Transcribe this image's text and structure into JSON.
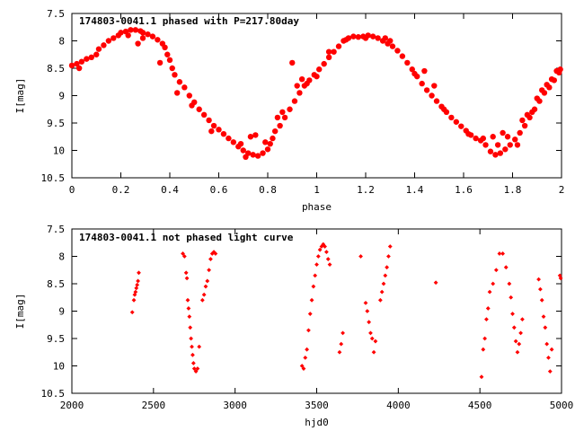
{
  "chart_data": [
    {
      "type": "scatter",
      "title": "174803-0041.1 phased with P=217.80day",
      "xlabel": "phase",
      "ylabel": "I[mag]",
      "xlim": [
        0,
        2
      ],
      "ylim": [
        10.5,
        7.5
      ],
      "y_inverted": true,
      "grid": false,
      "marker": "filled-circle",
      "x_ticks": [
        "0",
        "0.2",
        "0.4",
        "0.6",
        "0.8",
        "1",
        "1.2",
        "1.4",
        "1.6",
        "1.8",
        "2"
      ],
      "y_ticks": [
        "7.5",
        "8",
        "8.5",
        "9",
        "9.5",
        "10",
        "10.5"
      ],
      "color": "#ff0000",
      "series": [
        {
          "points": [
            [
              0.0,
              8.45
            ],
            [
              0.02,
              8.42
            ],
            [
              0.04,
              8.38
            ],
            [
              0.06,
              8.33
            ],
            [
              0.08,
              8.3
            ],
            [
              0.1,
              8.25
            ],
            [
              0.11,
              8.15
            ],
            [
              0.13,
              8.08
            ],
            [
              0.15,
              8.0
            ],
            [
              0.17,
              7.95
            ],
            [
              0.19,
              7.9
            ],
            [
              0.2,
              7.85
            ],
            [
              0.22,
              7.83
            ],
            [
              0.24,
              7.8
            ],
            [
              0.26,
              7.8
            ],
            [
              0.28,
              7.82
            ],
            [
              0.29,
              7.85
            ],
            [
              0.31,
              7.88
            ],
            [
              0.33,
              7.92
            ],
            [
              0.35,
              7.98
            ],
            [
              0.37,
              8.05
            ],
            [
              0.38,
              8.12
            ],
            [
              0.39,
              8.25
            ],
            [
              0.4,
              8.35
            ],
            [
              0.41,
              8.5
            ],
            [
              0.42,
              8.62
            ],
            [
              0.44,
              8.75
            ],
            [
              0.46,
              8.85
            ],
            [
              0.48,
              9.0
            ],
            [
              0.5,
              9.12
            ],
            [
              0.52,
              9.25
            ],
            [
              0.54,
              9.35
            ],
            [
              0.56,
              9.45
            ],
            [
              0.58,
              9.55
            ],
            [
              0.6,
              9.62
            ],
            [
              0.62,
              9.7
            ],
            [
              0.64,
              9.78
            ],
            [
              0.66,
              9.85
            ],
            [
              0.68,
              9.93
            ],
            [
              0.7,
              10.0
            ],
            [
              0.72,
              10.05
            ],
            [
              0.74,
              10.08
            ],
            [
              0.76,
              10.1
            ],
            [
              0.78,
              10.05
            ],
            [
              0.8,
              9.98
            ],
            [
              0.81,
              9.88
            ],
            [
              0.82,
              9.78
            ],
            [
              0.83,
              9.65
            ],
            [
              0.85,
              9.55
            ],
            [
              0.87,
              9.4
            ],
            [
              0.89,
              9.25
            ],
            [
              0.91,
              9.1
            ],
            [
              0.93,
              8.95
            ],
            [
              0.95,
              8.82
            ],
            [
              0.97,
              8.72
            ],
            [
              0.99,
              8.62
            ],
            [
              1.01,
              8.52
            ],
            [
              1.03,
              8.42
            ],
            [
              1.05,
              8.3
            ],
            [
              1.07,
              8.2
            ],
            [
              1.09,
              8.1
            ],
            [
              1.11,
              8.0
            ],
            [
              1.13,
              7.95
            ],
            [
              1.15,
              7.92
            ],
            [
              1.17,
              7.93
            ],
            [
              1.19,
              7.92
            ],
            [
              1.21,
              7.9
            ],
            [
              1.23,
              7.92
            ],
            [
              1.25,
              7.95
            ],
            [
              1.27,
              8.0
            ],
            [
              1.29,
              8.05
            ],
            [
              1.31,
              8.1
            ],
            [
              1.33,
              8.18
            ],
            [
              1.35,
              8.28
            ],
            [
              1.37,
              8.4
            ],
            [
              1.39,
              8.52
            ],
            [
              1.41,
              8.65
            ],
            [
              1.43,
              8.78
            ],
            [
              1.45,
              8.9
            ],
            [
              1.47,
              9.0
            ],
            [
              1.49,
              9.1
            ],
            [
              1.51,
              9.2
            ],
            [
              1.53,
              9.3
            ],
            [
              1.55,
              9.4
            ],
            [
              1.57,
              9.48
            ],
            [
              1.59,
              9.56
            ],
            [
              1.61,
              9.64
            ],
            [
              1.63,
              9.72
            ],
            [
              1.65,
              9.78
            ],
            [
              1.67,
              9.82
            ],
            [
              1.69,
              9.9
            ],
            [
              1.71,
              10.02
            ],
            [
              1.73,
              10.08
            ],
            [
              1.75,
              10.05
            ],
            [
              1.77,
              9.98
            ],
            [
              1.79,
              9.9
            ],
            [
              1.81,
              9.8
            ],
            [
              1.83,
              9.68
            ],
            [
              1.85,
              9.55
            ],
            [
              1.87,
              9.4
            ],
            [
              1.89,
              9.25
            ],
            [
              1.91,
              9.1
            ],
            [
              1.93,
              8.95
            ],
            [
              1.95,
              8.85
            ],
            [
              1.97,
              8.72
            ],
            [
              1.99,
              8.58
            ],
            [
              1.995,
              8.52
            ],
            [
              0.03,
              8.5
            ],
            [
              0.23,
              7.9
            ],
            [
              0.27,
              8.05
            ],
            [
              0.29,
              7.95
            ],
            [
              0.36,
              8.4
            ],
            [
              0.43,
              8.95
            ],
            [
              0.49,
              9.18
            ],
            [
              0.57,
              9.65
            ],
            [
              0.69,
              9.88
            ],
            [
              0.71,
              10.12
            ],
            [
              0.73,
              9.75
            ],
            [
              0.75,
              9.72
            ],
            [
              0.79,
              9.85
            ],
            [
              0.84,
              9.4
            ],
            [
              0.86,
              9.3
            ],
            [
              0.9,
              8.4
            ],
            [
              0.92,
              8.82
            ],
            [
              0.94,
              8.7
            ],
            [
              0.96,
              8.78
            ],
            [
              1.0,
              8.65
            ],
            [
              1.05,
              8.2
            ],
            [
              1.12,
              7.98
            ],
            [
              1.2,
              7.95
            ],
            [
              1.28,
              7.95
            ],
            [
              1.3,
              8.0
            ],
            [
              1.4,
              8.6
            ],
            [
              1.44,
              8.55
            ],
            [
              1.48,
              8.82
            ],
            [
              1.52,
              9.25
            ],
            [
              1.62,
              9.7
            ],
            [
              1.68,
              9.78
            ],
            [
              1.72,
              9.75
            ],
            [
              1.74,
              9.9
            ],
            [
              1.76,
              9.68
            ],
            [
              1.78,
              9.75
            ],
            [
              1.82,
              9.9
            ],
            [
              1.84,
              9.45
            ],
            [
              1.86,
              9.35
            ],
            [
              1.88,
              9.3
            ],
            [
              1.9,
              9.05
            ],
            [
              1.92,
              8.9
            ],
            [
              1.94,
              8.8
            ],
            [
              1.96,
              8.7
            ],
            [
              1.98,
              8.55
            ]
          ]
        }
      ]
    },
    {
      "type": "scatter",
      "title": "174803-0041.1 not phased light curve",
      "xlabel": "hjd0",
      "ylabel": "I[mag]",
      "xlim": [
        2000,
        5000
      ],
      "ylim": [
        10.5,
        7.5
      ],
      "y_inverted": true,
      "grid": false,
      "marker": "small-diamond",
      "x_ticks": [
        "2000",
        "2500",
        "3000",
        "3500",
        "4000",
        "4500",
        "5000"
      ],
      "y_ticks": [
        "7.5",
        "8",
        "8.5",
        "9",
        "9.5",
        "10",
        "10.5"
      ],
      "color": "#ff0000",
      "series": [
        {
          "points": [
            [
              2370,
              9.02
            ],
            [
              2380,
              8.8
            ],
            [
              2385,
              8.7
            ],
            [
              2390,
              8.65
            ],
            [
              2395,
              8.58
            ],
            [
              2400,
              8.52
            ],
            [
              2405,
              8.45
            ],
            [
              2410,
              8.3
            ],
            [
              2680,
              7.95
            ],
            [
              2690,
              8.0
            ],
            [
              2700,
              8.3
            ],
            [
              2705,
              8.4
            ],
            [
              2710,
              8.8
            ],
            [
              2715,
              8.95
            ],
            [
              2720,
              9.1
            ],
            [
              2725,
              9.3
            ],
            [
              2730,
              9.5
            ],
            [
              2735,
              9.65
            ],
            [
              2740,
              9.8
            ],
            [
              2745,
              9.95
            ],
            [
              2750,
              10.05
            ],
            [
              2760,
              10.1
            ],
            [
              2770,
              10.05
            ],
            [
              2780,
              9.65
            ],
            [
              2800,
              8.8
            ],
            [
              2810,
              8.7
            ],
            [
              2820,
              8.55
            ],
            [
              2830,
              8.45
            ],
            [
              2840,
              8.25
            ],
            [
              2850,
              8.05
            ],
            [
              2860,
              7.95
            ],
            [
              2870,
              7.92
            ],
            [
              2880,
              7.95
            ],
            [
              3410,
              10.0
            ],
            [
              3420,
              10.05
            ],
            [
              3430,
              9.85
            ],
            [
              3440,
              9.7
            ],
            [
              3450,
              9.35
            ],
            [
              3460,
              9.05
            ],
            [
              3470,
              8.8
            ],
            [
              3480,
              8.55
            ],
            [
              3490,
              8.35
            ],
            [
              3500,
              8.15
            ],
            [
              3510,
              8.0
            ],
            [
              3520,
              7.88
            ],
            [
              3530,
              7.82
            ],
            [
              3540,
              7.78
            ],
            [
              3550,
              7.82
            ],
            [
              3560,
              7.92
            ],
            [
              3570,
              8.05
            ],
            [
              3580,
              8.15
            ],
            [
              3640,
              9.75
            ],
            [
              3650,
              9.6
            ],
            [
              3660,
              9.4
            ],
            [
              3770,
              8.0
            ],
            [
              3800,
              8.85
            ],
            [
              3810,
              9.0
            ],
            [
              3820,
              9.2
            ],
            [
              3830,
              9.4
            ],
            [
              3840,
              9.5
            ],
            [
              3850,
              9.75
            ],
            [
              3860,
              9.55
            ],
            [
              3890,
              8.8
            ],
            [
              3900,
              8.65
            ],
            [
              3910,
              8.5
            ],
            [
              3920,
              8.35
            ],
            [
              3930,
              8.2
            ],
            [
              3940,
              8.0
            ],
            [
              3950,
              7.82
            ],
            [
              4230,
              8.48
            ],
            [
              4510,
              10.2
            ],
            [
              4520,
              9.7
            ],
            [
              4530,
              9.5
            ],
            [
              4540,
              9.15
            ],
            [
              4550,
              8.95
            ],
            [
              4560,
              8.65
            ],
            [
              4580,
              8.5
            ],
            [
              4600,
              8.25
            ],
            [
              4620,
              7.95
            ],
            [
              4640,
              7.95
            ],
            [
              4660,
              8.2
            ],
            [
              4680,
              8.5
            ],
            [
              4690,
              8.75
            ],
            [
              4700,
              9.05
            ],
            [
              4710,
              9.3
            ],
            [
              4720,
              9.55
            ],
            [
              4730,
              9.75
            ],
            [
              4740,
              9.6
            ],
            [
              4750,
              9.4
            ],
            [
              4760,
              9.15
            ],
            [
              4860,
              8.42
            ],
            [
              4870,
              8.6
            ],
            [
              4880,
              8.8
            ],
            [
              4890,
              9.1
            ],
            [
              4900,
              9.3
            ],
            [
              4910,
              9.6
            ],
            [
              4920,
              9.85
            ],
            [
              4930,
              10.1
            ],
            [
              4940,
              9.7
            ],
            [
              4990,
              8.35
            ],
            [
              4995,
              8.4
            ]
          ]
        }
      ]
    }
  ]
}
